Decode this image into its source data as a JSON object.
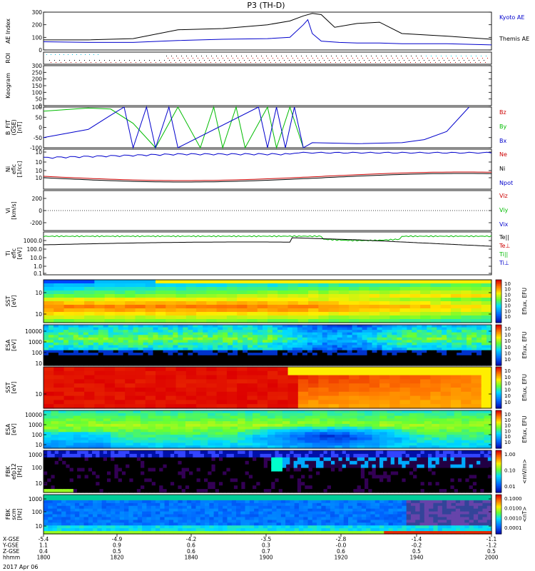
{
  "title": "P3 (TH-D)",
  "date_label": "2017 Apr 06",
  "colors": {
    "blue": "#0000cc",
    "red": "#cc0000",
    "green": "#00bb00",
    "black": "#000000",
    "cyan": "#00bbdd"
  },
  "chart_data": [
    {
      "id": "ae",
      "type": "line",
      "ylabel": "AE Index",
      "ylim": [
        0,
        300
      ],
      "yticks": [
        "0",
        "100",
        "200",
        "300"
      ],
      "legend_placement": "right",
      "series": [
        {
          "name": "Kyoto AE",
          "color": "#0000cc",
          "t": [
            1800,
            1810,
            1820,
            1830,
            1840,
            1850,
            1855,
            1858,
            1859,
            1860,
            1862,
            1866,
            1870,
            1875,
            1880,
            1890,
            1900
          ],
          "values": [
            65,
            60,
            60,
            75,
            85,
            90,
            100,
            200,
            240,
            130,
            70,
            60,
            55,
            55,
            50,
            50,
            40
          ]
        },
        {
          "name": "Themis AE",
          "color": "#000000",
          "t": [
            1800,
            1810,
            1820,
            1830,
            1840,
            1850,
            1855,
            1858,
            1860,
            1862,
            1865,
            1870,
            1875,
            1880,
            1890,
            1900
          ],
          "values": [
            80,
            80,
            90,
            160,
            170,
            200,
            230,
            270,
            290,
            280,
            180,
            210,
            220,
            130,
            110,
            85
          ]
        }
      ]
    },
    {
      "id": "roi",
      "type": "scatter",
      "ylabel": "ROI"
    },
    {
      "id": "keogram",
      "type": "table",
      "ylabel": "Keogram",
      "ylim": [
        0,
        300
      ],
      "yticks": [
        "0",
        "50",
        "100",
        "150",
        "200",
        "250",
        "300"
      ]
    },
    {
      "id": "bfit",
      "type": "line",
      "ylabel": "B_FIT\n(GSE)\n[nT]",
      "ylim": [
        -100,
        100
      ],
      "yticks": [
        "-100",
        "-50",
        "0",
        "50",
        "100"
      ],
      "series": [
        {
          "name": "Bz",
          "color": "#cc0000",
          "t": [],
          "values": []
        },
        {
          "name": "By",
          "color": "#00bb00",
          "t": [
            1800,
            1810,
            1815,
            1820,
            1825,
            1830,
            1835,
            1838,
            1840,
            1843,
            1845,
            1850,
            1852,
            1855,
            1858
          ],
          "values": [
            80,
            95,
            90,
            20,
            -100,
            100,
            -100,
            100,
            -100,
            100,
            -100,
            100,
            -100,
            100,
            -100
          ]
        },
        {
          "name": "Bx",
          "color": "#0000cc",
          "t": [
            1800,
            1810,
            1815,
            1818,
            1820,
            1823,
            1825,
            1828,
            1830,
            1848,
            1850,
            1852,
            1854,
            1856,
            1858,
            1860,
            1870,
            1880,
            1885,
            1890,
            1895
          ],
          "values": [
            -50,
            -10,
            60,
            100,
            -100,
            100,
            -100,
            100,
            -100,
            100,
            -100,
            100,
            -100,
            100,
            -100,
            -75,
            -80,
            -75,
            -60,
            -20,
            100
          ]
        }
      ]
    },
    {
      "id": "ni",
      "type": "line",
      "ylabel": "Ni\neflc\n[1/cc]",
      "scale": "log",
      "yticks": [
        "10",
        "10",
        "10",
        "10"
      ],
      "series": [
        {
          "name": "Ne",
          "color": "#cc0000"
        },
        {
          "name": "Ni",
          "color": "#000000"
        },
        {
          "name": "Npot",
          "color": "#0000cc"
        }
      ]
    },
    {
      "id": "vi",
      "type": "line",
      "ylabel": "Vi\n[km/s]",
      "ylim": [
        -300,
        300
      ],
      "yticks": [
        "-200",
        "0",
        "200"
      ],
      "series": [
        {
          "name": "Viz",
          "color": "#cc0000"
        },
        {
          "name": "Viy",
          "color": "#00bb00"
        },
        {
          "name": "Vix",
          "color": "#0000cc"
        }
      ]
    },
    {
      "id": "ti",
      "type": "line",
      "ylabel": "Ti\neflc\n[eV]",
      "scale": "log",
      "yticks": [
        "1000.0",
        "100.0",
        "10.0",
        "1.0",
        "0.1"
      ],
      "series": [
        {
          "name": "Te||",
          "color": "#000000"
        },
        {
          "name": "Te⊥",
          "color": "#cc0000"
        },
        {
          "name": "Ti||",
          "color": "#00bb00"
        },
        {
          "name": "Ti⊥",
          "color": "#0000cc"
        }
      ]
    },
    {
      "id": "sst1",
      "type": "heatmap",
      "ylabel": "SST\n[eV]",
      "yticks": [
        "10",
        "10"
      ],
      "colorbar_label": "Eflux, EFU",
      "cbticks": [
        "10",
        "10",
        "10",
        "10",
        "10",
        "10",
        "10"
      ]
    },
    {
      "id": "esa1",
      "type": "heatmap",
      "ylabel": "ESA\n[eV]",
      "yticks": [
        "10000",
        "1000",
        "100",
        "10"
      ],
      "colorbar_label": "Eflux, EFU",
      "cbticks": [
        "10",
        "10",
        "10",
        "10",
        "10",
        "10"
      ]
    },
    {
      "id": "sst2",
      "type": "heatmap",
      "ylabel": "SST\n[eV]",
      "yticks": [
        "10"
      ],
      "colorbar_label": "Eflux, EFU",
      "cbticks": [
        "10",
        "10",
        "10",
        "10",
        "10",
        "10"
      ]
    },
    {
      "id": "esa2",
      "type": "heatmap",
      "ylabel": "ESA\n[eV]",
      "yticks": [
        "10000",
        "1000",
        "100",
        "10"
      ],
      "colorbar_label": "Eflux, EFU",
      "cbticks": [
        "10",
        "10",
        "10",
        "10",
        "10",
        "10"
      ]
    },
    {
      "id": "fbk1",
      "type": "heatmap",
      "ylabel": "FBK\nefp12\n[Hz]",
      "yticks": [
        "1000",
        "100",
        "10"
      ],
      "colorbar_label": "<mV/m>",
      "cbticks": [
        "1.00",
        "0.10",
        "0.01"
      ]
    },
    {
      "id": "fbk2",
      "type": "heatmap",
      "ylabel": "FBK\nscm\n[Hz]",
      "yticks": [
        "1000",
        "100",
        "10"
      ],
      "colorbar_label": "<nT>",
      "cbticks": [
        "0.1000",
        "0.0100",
        "0.0010",
        "0.0001"
      ]
    }
  ],
  "xaxis": {
    "row_labels": [
      "X-GSE",
      "Y-GSE",
      "Z-GSE",
      "hhmm"
    ],
    "columns": [
      {
        "vals": [
          "-5.4",
          "1.1",
          "0.4",
          "1800"
        ]
      },
      {
        "vals": [
          "-4.9",
          "0.9",
          "0.5",
          "1820"
        ]
      },
      {
        "vals": [
          "-4.2",
          "0.6",
          "0.6",
          "1840"
        ]
      },
      {
        "vals": [
          "-3.5",
          "0.3",
          "0.7",
          "1900"
        ]
      },
      {
        "vals": [
          "-2.8",
          "-0.0",
          "0.6",
          "1920"
        ]
      },
      {
        "vals": [
          "-1.4",
          "-0.2",
          "0.5",
          "1940"
        ]
      },
      {
        "vals": [
          "-1.1",
          "-1.2",
          "0.5",
          "2000"
        ]
      }
    ]
  }
}
